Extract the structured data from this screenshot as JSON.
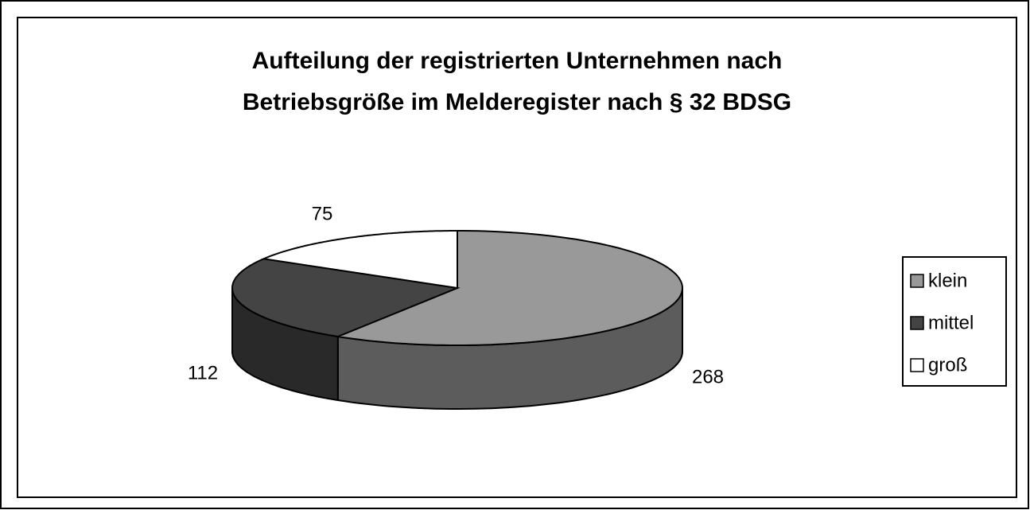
{
  "chart_data": {
    "type": "pie3d",
    "title": [
      "Aufteilung der registrierten Unternehmen nach",
      "Betriebsgröße im Melderegister nach § 32 BDSG"
    ],
    "categories": [
      "klein",
      "mittel",
      "groß"
    ],
    "values": [
      268,
      112,
      75
    ],
    "colors": [
      "#999999",
      "#444444",
      "#ffffff"
    ],
    "legend": "right"
  }
}
